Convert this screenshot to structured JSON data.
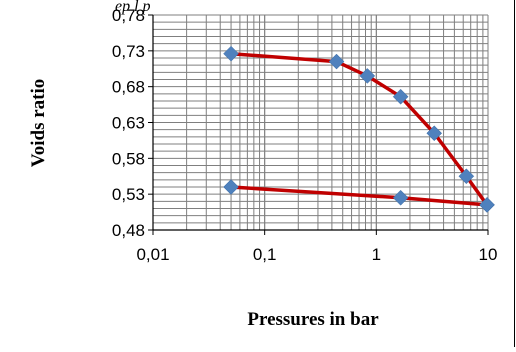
{
  "caption_fragment": "ep                                                    l                    p",
  "chart_data": {
    "type": "line",
    "title": "",
    "xlabel": "Pressures in bar",
    "ylabel": "Voids ratio",
    "xscale": "log",
    "xlim": [
      0.01,
      10
    ],
    "ylim": [
      0.48,
      0.78
    ],
    "xticks": [
      "0,01",
      "0,1",
      "1",
      "10"
    ],
    "yticks": [
      "0,78",
      "0,73",
      "0,68",
      "0,63",
      "0,58",
      "0,53",
      "0,48"
    ],
    "grid": true,
    "legend": "none",
    "series": [
      {
        "x": [
          0.05,
          0.44,
          0.83,
          1.65,
          3.3,
          6.4,
          9.8
        ],
        "y": [
          0.726,
          0.715,
          0.695,
          0.666,
          0.615,
          0.555,
          0.515
        ]
      },
      {
        "x": [
          9.8,
          1.65,
          0.05
        ],
        "y": [
          0.515,
          0.525,
          0.54
        ]
      }
    ],
    "line_color": "#c00000",
    "marker_color": "#4f81bd",
    "marker": "diamond"
  }
}
